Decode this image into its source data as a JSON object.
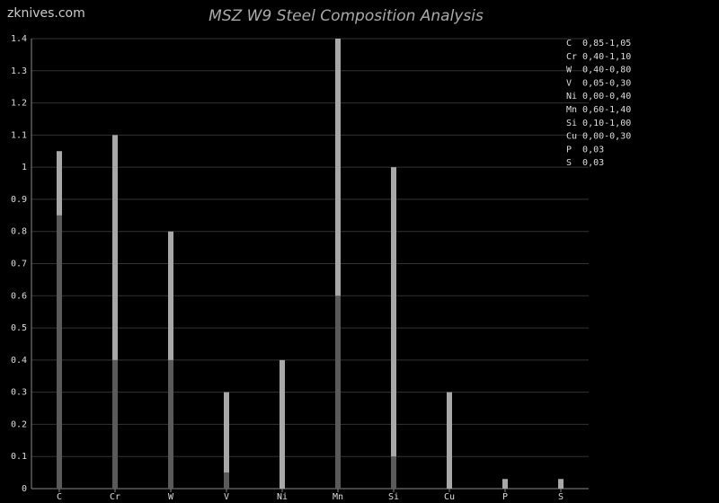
{
  "watermark": "zknives.com",
  "chart_data": {
    "type": "range-bar",
    "title": "MSZ W9 Steel Composition Analysis",
    "categories": [
      "C",
      "Cr",
      "W",
      "V",
      "Ni",
      "Mn",
      "Si",
      "Cu",
      "P",
      "S"
    ],
    "low": [
      0.85,
      0.4,
      0.4,
      0.05,
      0.0,
      0.6,
      0.1,
      0.0,
      null,
      null
    ],
    "high": [
      1.05,
      1.1,
      0.8,
      0.3,
      0.4,
      1.4,
      1.0,
      0.3,
      0.03,
      0.03
    ],
    "low_color": "#5a5a5a",
    "high_color": "#a8a8a8",
    "ylim": [
      0,
      1.4
    ],
    "yticks": [
      0,
      0.1,
      0.2,
      0.3,
      0.4,
      0.5,
      0.6,
      0.7,
      0.8,
      0.9,
      1,
      1.1,
      1.2,
      1.3,
      1.4
    ],
    "grid": true,
    "legend": [
      "C  0,85-1,05",
      "Cr 0,40-1,10",
      "W  0,40-0,80",
      "V  0,05-0,30",
      "Ni 0,00-0,40",
      "Mn 0,60-1,40",
      "Si 0,10-1,00",
      "Cu 0,00-0,30",
      "P  0,03",
      "S  0,03"
    ]
  }
}
